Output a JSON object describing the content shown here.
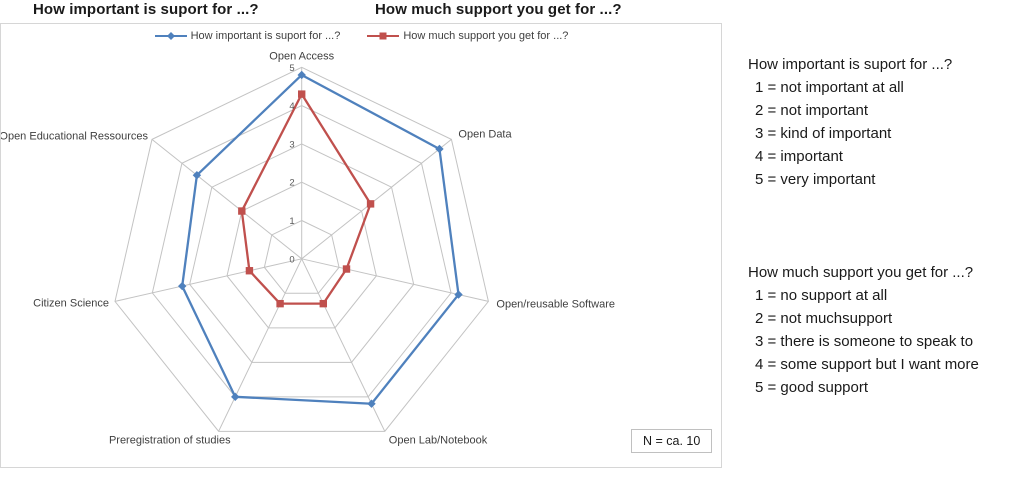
{
  "titles": {
    "left": "How important is suport for ...?",
    "right": "How much support you get for ...?"
  },
  "chart_data": {
    "type": "radar",
    "categories": [
      "Open Access",
      "Open Data",
      "Open/reusable Software",
      "Open Lab/Notebook",
      "Preregistration of studies",
      "Citizen Science",
      "Open Educational Ressources"
    ],
    "series": [
      {
        "name": "How important is suport for ...?",
        "color": "#4F81BD",
        "marker": "diamond",
        "values": [
          4.8,
          4.6,
          4.2,
          4.2,
          4.0,
          3.2,
          3.5
        ]
      },
      {
        "name": "How much support you get for ...?",
        "color": "#C0504D",
        "marker": "square",
        "values": [
          4.3,
          2.3,
          1.2,
          1.3,
          1.3,
          1.4,
          2.0
        ]
      }
    ],
    "ticks": [
      0,
      1,
      2,
      3,
      4,
      5
    ],
    "rmin": 0,
    "rmax": 5,
    "grid": true,
    "gridline_color": "#c3c3c3",
    "legend_position": "top",
    "tick_label_color": "#595959",
    "category_label_color": "#404040"
  },
  "annotation": {
    "n_label": "N = ca. 10"
  },
  "right_panel": {
    "block1": {
      "title": "How important is suport for ...?",
      "lines": [
        "1 = not important at all",
        "2 = not important",
        "3 = kind of important",
        "4 = important",
        "5 = very important"
      ]
    },
    "block2": {
      "title": "How much support you get for ...?",
      "lines": [
        "1 = no support at all",
        "2 = not muchsupport",
        "3 = there is someone to speak to",
        "4 = some support but I want more",
        "5 = good support"
      ]
    }
  }
}
